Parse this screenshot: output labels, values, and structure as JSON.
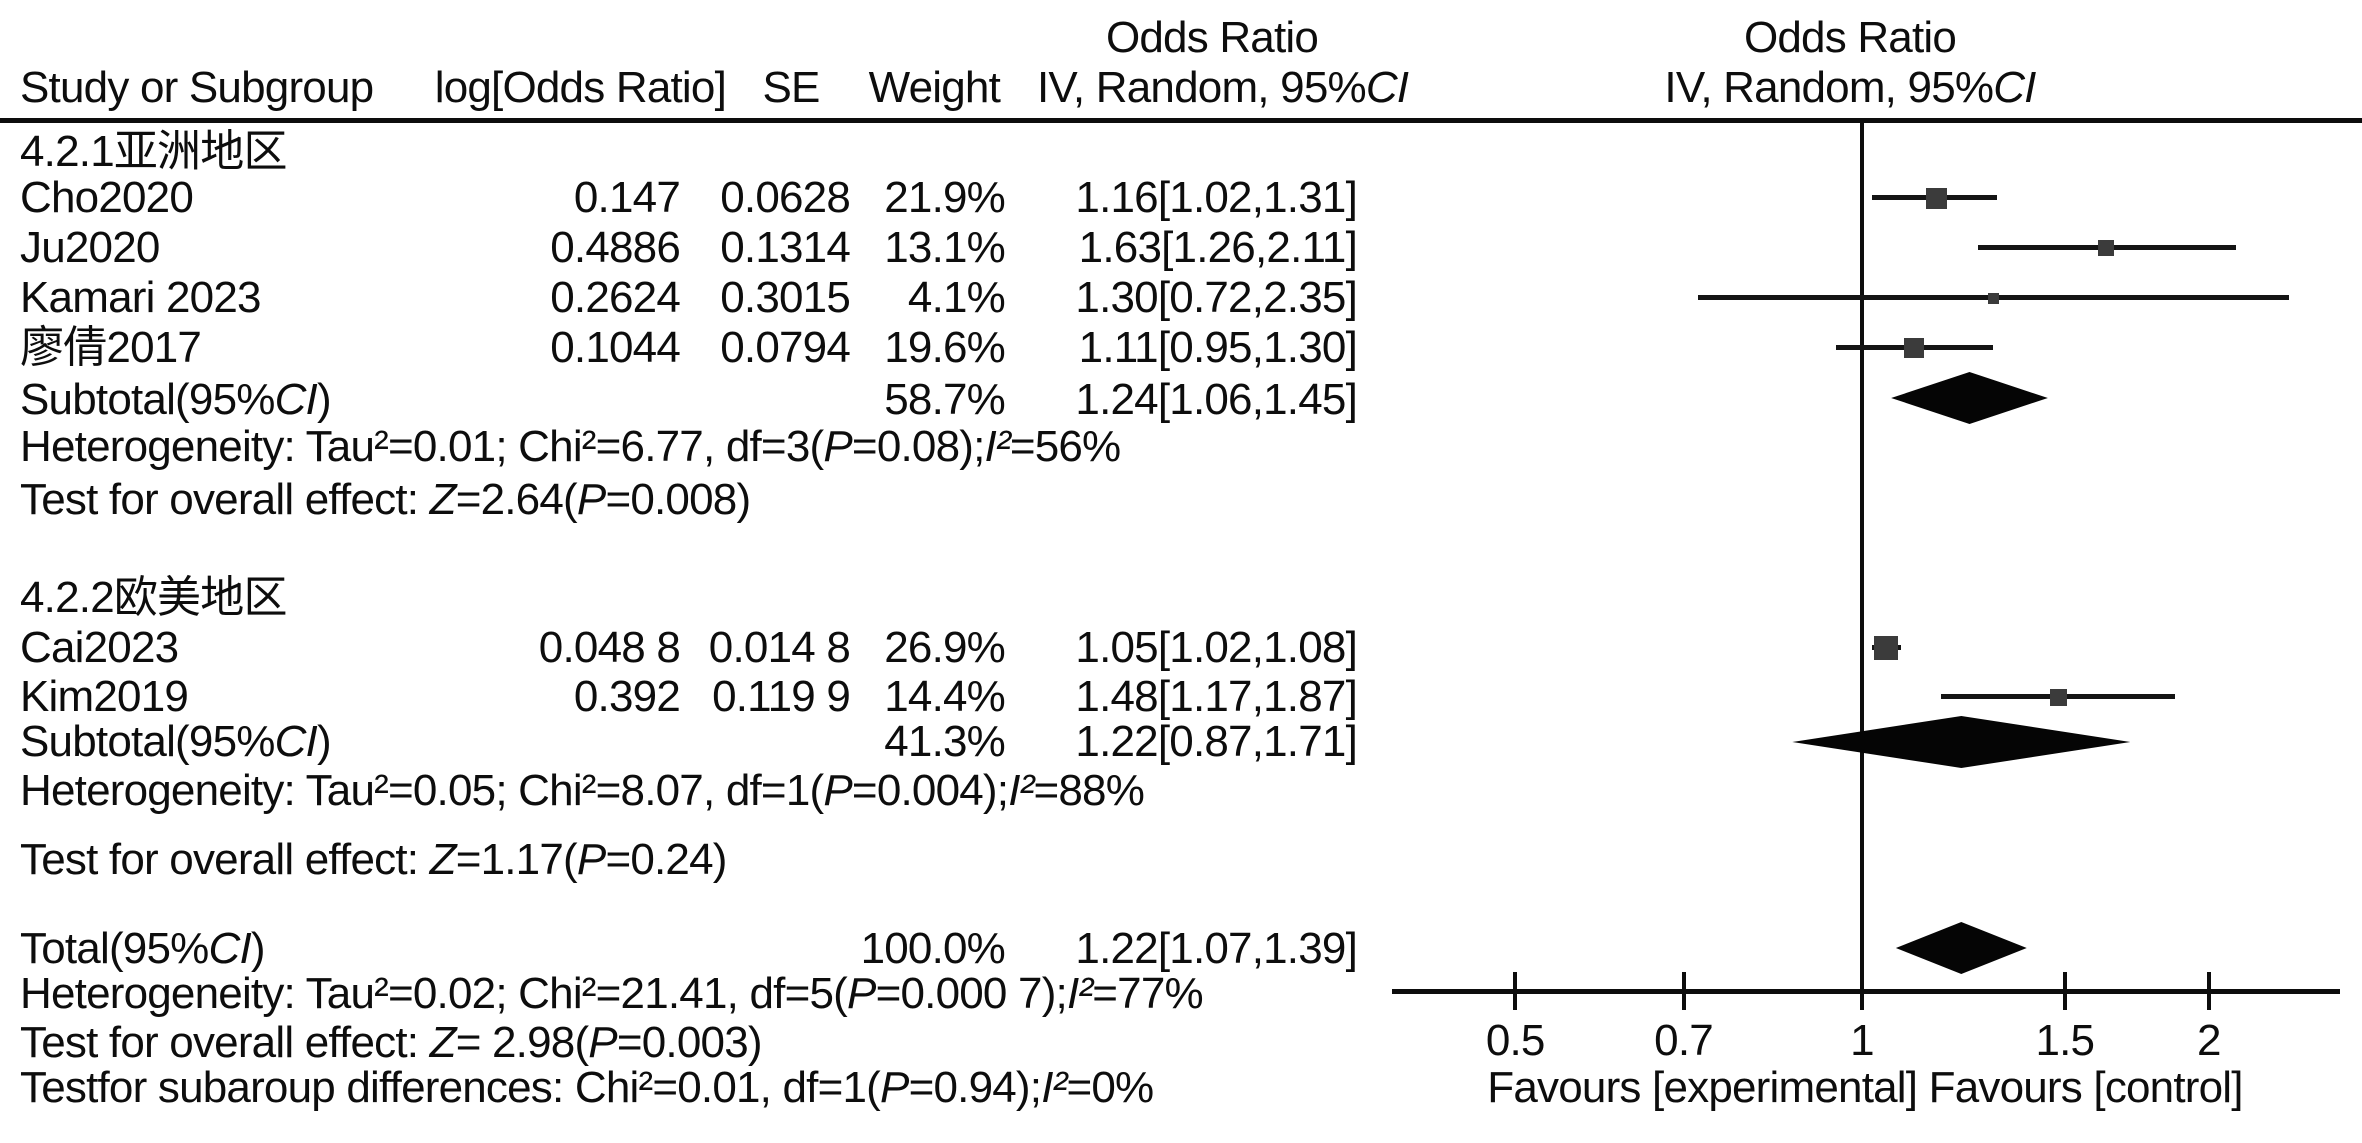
{
  "table": {
    "headers": {
      "study": "Study or Subgroup",
      "log_or": "log[Odds Ratio]",
      "se": "SE",
      "weight": "Weight",
      "or_col_title": "Odds Ratio",
      "or_col_method": "IV, Random, 95%CI",
      "plot_col_title": "Odds Ratio",
      "plot_col_method": "IV, Random, 95%CI"
    },
    "groups": [
      {
        "label": "4.2.1亚洲地区",
        "rows": [
          {
            "study": "Cho2020",
            "log_or": "0.147",
            "se": "0.0628",
            "weight": "21.9%",
            "or_ci": "1.16[1.02,1.31]"
          },
          {
            "study": "Ju2020",
            "log_or": "0.4886",
            "se": "0.1314",
            "weight": "13.1%",
            "or_ci": "1.63[1.26,2.11]"
          },
          {
            "study": "Kamari 2023",
            "log_or": "0.2624",
            "se": "0.3015",
            "weight": "4.1%",
            "or_ci": "1.30[0.72,2.35]"
          },
          {
            "study": "廖倩2017",
            "log_or": "0.1044",
            "se": "0.0794",
            "weight": "19.6%",
            "or_ci": "1.11[0.95,1.30]"
          }
        ],
        "subtotal": {
          "label": "Subtotal(95%CI)",
          "weight": "58.7%",
          "or_ci": "1.24[1.06,1.45]"
        },
        "heterogeneity": "Heterogeneity: Tau²=0.01; Chi²=6.77, df=3(P=0.08);I²=56%",
        "overall_effect": "Test for overall effect: Z=2.64(P=0.008)"
      },
      {
        "label": "4.2.2欧美地区",
        "rows": [
          {
            "study": "Cai2023",
            "log_or": "0.048 8",
            "se": "0.014 8",
            "weight": "26.9%",
            "or_ci": "1.05[1.02,1.08]"
          },
          {
            "study": "Kim2019",
            "log_or": "0.392",
            "se": "0.119 9",
            "weight": "14.4%",
            "or_ci": "1.48[1.17,1.87]"
          }
        ],
        "subtotal": {
          "label": "Subtotal(95%CI)",
          "weight": "41.3%",
          "or_ci": "1.22[0.87,1.71]"
        },
        "heterogeneity": "Heterogeneity: Tau²=0.05; Chi²=8.07, df=1(P=0.004);I²=88%",
        "overall_effect": "Test for overall effect: Z=1.17(P=0.24)"
      }
    ],
    "total": {
      "label": "Total(95%CI)",
      "weight": "100.0%",
      "or_ci": "1.22[1.07,1.39]",
      "heterogeneity": "Heterogeneity: Tau²=0.02; Chi²=21.41, df=5(P=0.000 7);I²=77%",
      "overall_effect": "Test for overall effect: Z= 2.98(P=0.003)",
      "subgroup_differences": "Testfor subaroup differences: Chi²=0.01, df=1(P=0.94);I²=0%"
    }
  },
  "colors": {
    "text": "#0d0d0d",
    "effect_square": "#3b3b3b",
    "ci_line": "#141414",
    "summary_diamond": "#050505"
  },
  "chart_data": {
    "type": "forest",
    "x_scale": "log",
    "x_ticks": [
      0.5,
      0.7,
      1,
      1.5,
      2
    ],
    "x_range": [
      0.39,
      2.6
    ],
    "null_line": 1,
    "xlabel": "Favours [experimental] Favours [control]",
    "effect_measure": "Odds Ratio, IV, Random, 95%CI",
    "studies": [
      {
        "name": "Cho2020",
        "group": "4.2.1亚洲地区",
        "or": 1.16,
        "ci_low": 1.02,
        "ci_high": 1.31,
        "weight_pct": 21.9
      },
      {
        "name": "Ju2020",
        "group": "4.2.1亚洲地区",
        "or": 1.63,
        "ci_low": 1.26,
        "ci_high": 2.11,
        "weight_pct": 13.1
      },
      {
        "name": "Kamari 2023",
        "group": "4.2.1亚洲地区",
        "or": 1.3,
        "ci_low": 0.72,
        "ci_high": 2.35,
        "weight_pct": 4.1
      },
      {
        "name": "廖倩2017",
        "group": "4.2.1亚洲地区",
        "or": 1.11,
        "ci_low": 0.95,
        "ci_high": 1.3,
        "weight_pct": 19.6
      },
      {
        "name": "Cai2023",
        "group": "4.2.2欧美地区",
        "or": 1.05,
        "ci_low": 1.02,
        "ci_high": 1.08,
        "weight_pct": 26.9
      },
      {
        "name": "Kim2019",
        "group": "4.2.2欧美地区",
        "or": 1.48,
        "ci_low": 1.17,
        "ci_high": 1.87,
        "weight_pct": 14.4
      }
    ],
    "summaries": [
      {
        "name": "Subtotal 4.2.1亚洲地区",
        "or": 1.24,
        "ci_low": 1.06,
        "ci_high": 1.45,
        "weight_pct": 58.7
      },
      {
        "name": "Subtotal 4.2.2欧美地区",
        "or": 1.22,
        "ci_low": 0.87,
        "ci_high": 1.71,
        "weight_pct": 41.3
      },
      {
        "name": "Total",
        "or": 1.22,
        "ci_low": 1.07,
        "ci_high": 1.39,
        "weight_pct": 100.0
      }
    ]
  }
}
